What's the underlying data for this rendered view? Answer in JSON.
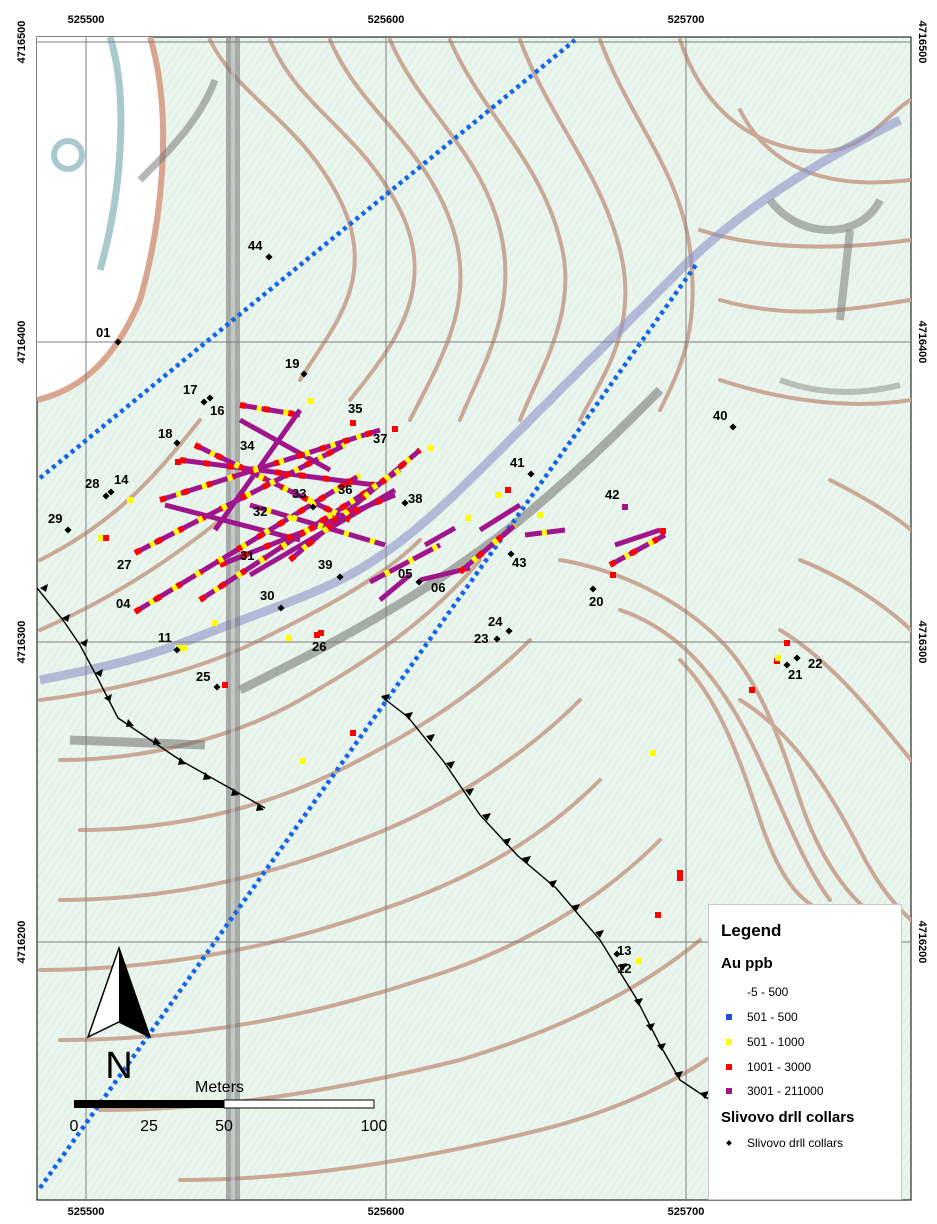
{
  "axes": {
    "top_x": [
      "525500",
      "525600",
      "525700"
    ],
    "bottom_x": [
      "525500",
      "525600",
      "525700"
    ],
    "left_y": [
      "4716500",
      "4716400",
      "4716300",
      "4716200"
    ],
    "right_y": [
      "4716500",
      "4716400",
      "4716300",
      "4716200"
    ]
  },
  "collars": {
    "c01": "01",
    "c44": "44",
    "c19": "19",
    "c17": "17",
    "c16": "16",
    "c35": "35",
    "c18": "18",
    "c34": "34",
    "c37": "37",
    "c40": "40",
    "c41": "41",
    "c28": "28",
    "c14": "14",
    "c36": "36",
    "c33": "33",
    "c38": "38",
    "c42": "42",
    "c29": "29",
    "c32": "32",
    "c31": "31",
    "c27": "27",
    "c39": "39",
    "c43": "43",
    "c05": "05",
    "c06": "06",
    "c04": "04",
    "c30": "30",
    "c20": "20",
    "c24": "24",
    "c23": "23",
    "c11": "11",
    "c26": "26",
    "c22": "22",
    "c21": "21",
    "c25": "25",
    "c13": "13",
    "c12": "12"
  },
  "north_arrow": {
    "label": "N"
  },
  "scale_bar": {
    "title": "Meters",
    "ticks": [
      "0",
      "25",
      "50",
      "100"
    ]
  },
  "legend": {
    "title": "Legend",
    "au_title": "Au ppb",
    "classes": [
      {
        "label": "-5 - 500",
        "color": ""
      },
      {
        "label": "501 - 500",
        "color": "#1f4fd8"
      },
      {
        "label": "501 - 1000",
        "color": "#ffff00"
      },
      {
        "label": "1001 - 3000",
        "color": "#ff0000"
      },
      {
        "label": "3001 - 211000",
        "color": "#a0158c"
      }
    ],
    "collar_title": "Slivovo drll collars",
    "collar_label": "Slivovo drll collars"
  },
  "colors": {
    "background": "#e9f4ec",
    "contour": "#c9a896",
    "fault_line": "#000000",
    "dotted_boundary": "#1466e6",
    "river": "#8c92c8",
    "road": "#6e6e6e"
  }
}
